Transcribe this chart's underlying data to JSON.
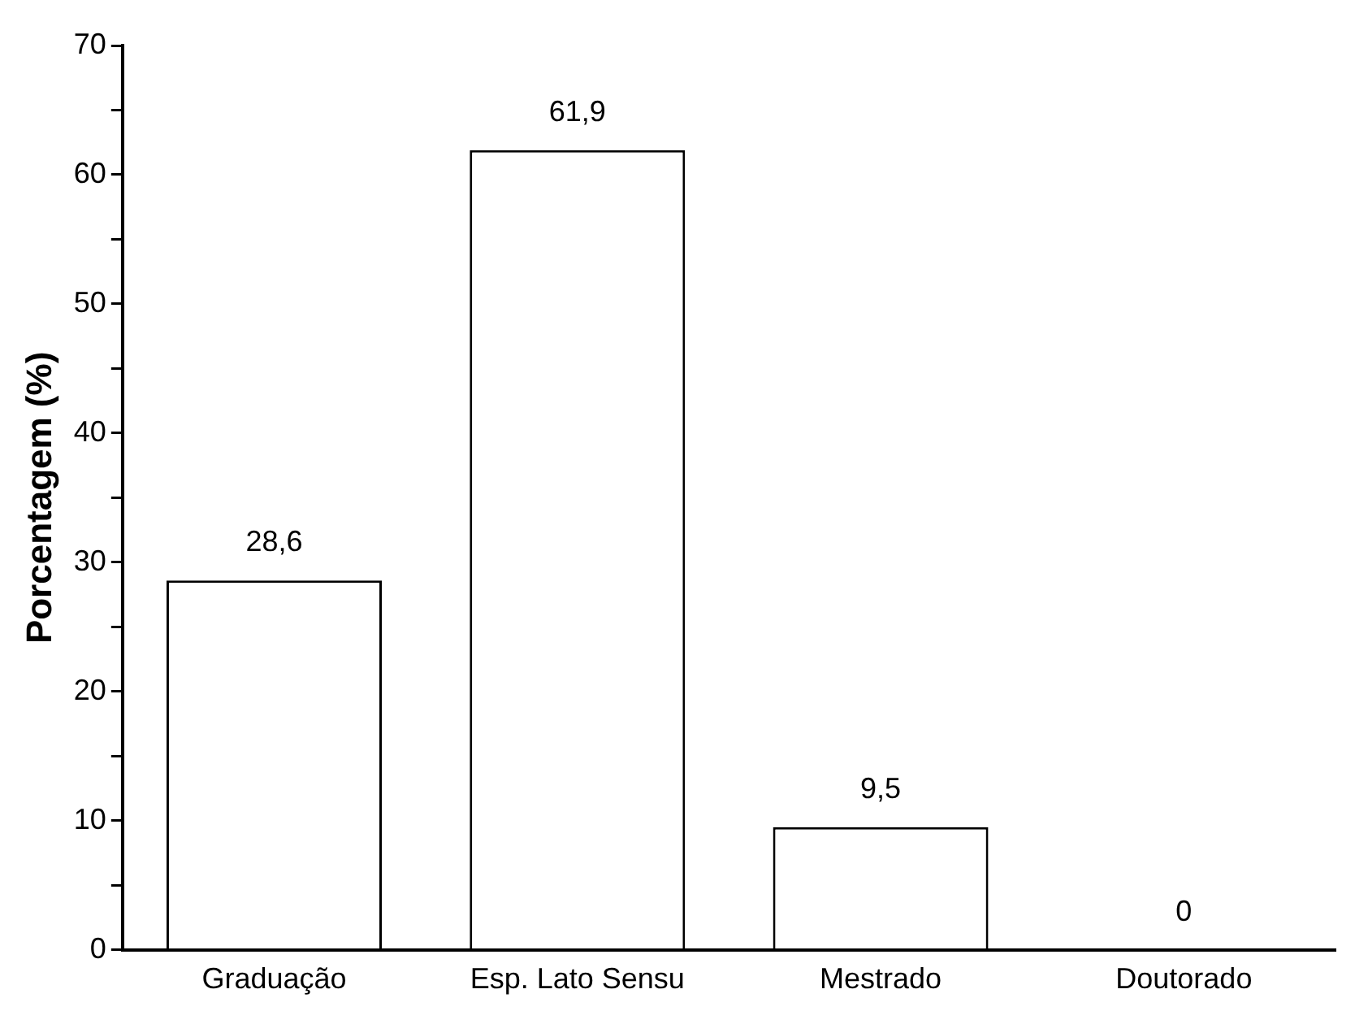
{
  "chart_data": {
    "type": "bar",
    "ylabel": "Porcentagem (%)",
    "categories": [
      "Graduação",
      "Esp. Lato Sensu",
      "Mestrado",
      "Doutorado"
    ],
    "values": [
      28.6,
      61.9,
      9.5,
      0
    ],
    "color": "#ffffff",
    "value_labels": [
      "28,6",
      "61,9",
      "9,5",
      "0"
    ],
    "ylim": [
      0,
      70
    ],
    "yticks": [
      0,
      {
        "value": 5,
        "label": null
      },
      10,
      {
        "value": 15,
        "label": null
      },
      20,
      {
        "value": 25,
        "label": null
      },
      30,
      {
        "value": 35,
        "label": null
      },
      40,
      {
        "value": 45,
        "label": null
      },
      50,
      {
        "value": 55,
        "label": null
      },
      60,
      {
        "value": 65,
        "label": null
      },
      70
    ],
    "grid": false,
    "legend": false
  }
}
